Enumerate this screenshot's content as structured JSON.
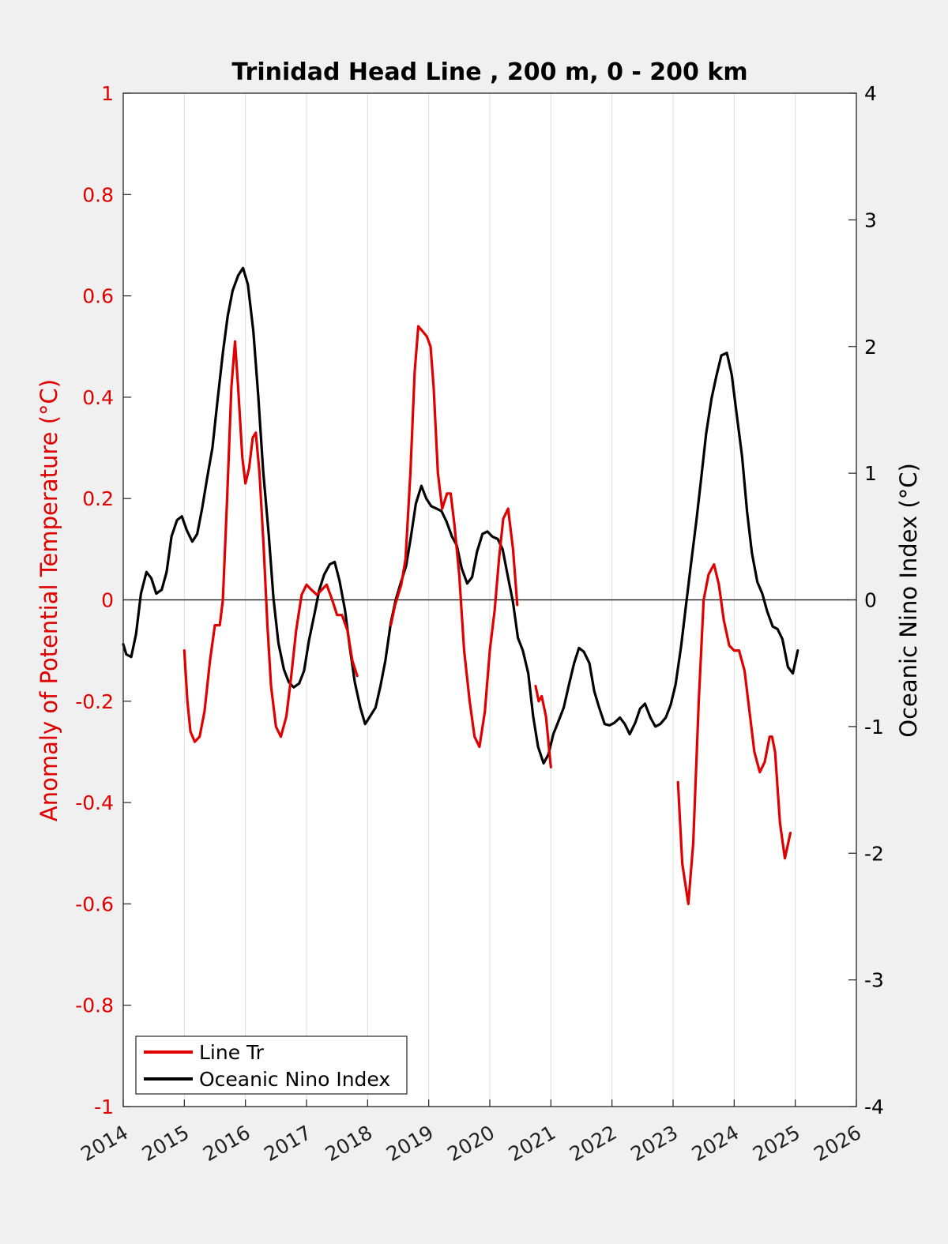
{
  "chart_data": {
    "type": "line",
    "title": "Trinidad Head Line , 200 m, 0 - 200 km",
    "ylabel_left": "Anomaly of Potential Temperature (°C)",
    "ylabel_right": "Oceanic Nino Index (°C)",
    "xlim": [
      2014,
      2026
    ],
    "ylim_left": [
      -1,
      1
    ],
    "ylim_right": [
      -4,
      4
    ],
    "x_ticks": [
      "2014",
      "2015",
      "2016",
      "2017",
      "2018",
      "2019",
      "2020",
      "2021",
      "2022",
      "2023",
      "2024",
      "2025",
      "2026"
    ],
    "y_ticks_left": [
      "1",
      "0.8",
      "0.6",
      "0.4",
      "0.2",
      "0",
      "-0.2",
      "-0.4",
      "-0.6",
      "-0.8",
      "-1"
    ],
    "y_ticks_right": [
      "4",
      "3",
      "2",
      "1",
      "0",
      "-1",
      "-2",
      "-3",
      "-4"
    ],
    "grid": "vertical",
    "zero_line": true,
    "legend_placement": "bottom-left",
    "colors": {
      "line_tr": "#e00000",
      "oni": "#000000",
      "axis_left": "#e00000",
      "background": "#f0f0f0"
    },
    "series": [
      {
        "name": "Line Tr",
        "axis": "left",
        "segments": [
          [
            [
              2015.0,
              -0.1
            ],
            [
              2015.05,
              -0.2
            ],
            [
              2015.1,
              -0.26
            ],
            [
              2015.17,
              -0.28
            ],
            [
              2015.25,
              -0.27
            ],
            [
              2015.33,
              -0.22
            ],
            [
              2015.42,
              -0.12
            ],
            [
              2015.5,
              -0.05
            ],
            [
              2015.58,
              -0.05
            ],
            [
              2015.63,
              0.0
            ],
            [
              2015.7,
              0.2
            ],
            [
              2015.77,
              0.42
            ],
            [
              2015.83,
              0.51
            ],
            [
              2015.88,
              0.42
            ],
            [
              2015.95,
              0.28
            ],
            [
              2016.0,
              0.23
            ],
            [
              2016.06,
              0.26
            ],
            [
              2016.12,
              0.32
            ],
            [
              2016.17,
              0.33
            ],
            [
              2016.23,
              0.25
            ],
            [
              2016.3,
              0.1
            ],
            [
              2016.36,
              -0.05
            ],
            [
              2016.42,
              -0.17
            ],
            [
              2016.5,
              -0.25
            ],
            [
              2016.58,
              -0.27
            ],
            [
              2016.67,
              -0.23
            ],
            [
              2016.75,
              -0.15
            ],
            [
              2016.83,
              -0.06
            ],
            [
              2016.92,
              0.01
            ],
            [
              2017.0,
              0.03
            ],
            [
              2017.08,
              0.02
            ],
            [
              2017.17,
              0.01
            ],
            [
              2017.25,
              0.02
            ],
            [
              2017.33,
              0.03
            ],
            [
              2017.42,
              0.0
            ],
            [
              2017.5,
              -0.03
            ],
            [
              2017.58,
              -0.03
            ],
            [
              2017.67,
              -0.06
            ],
            [
              2017.75,
              -0.12
            ],
            [
              2017.83,
              -0.15
            ]
          ],
          [
            [
              2018.38,
              -0.05
            ],
            [
              2018.45,
              -0.01
            ],
            [
              2018.55,
              0.03
            ],
            [
              2018.62,
              0.08
            ],
            [
              2018.7,
              0.25
            ],
            [
              2018.77,
              0.45
            ],
            [
              2018.83,
              0.54
            ],
            [
              2018.9,
              0.53
            ],
            [
              2018.97,
              0.52
            ],
            [
              2019.03,
              0.5
            ],
            [
              2019.08,
              0.42
            ],
            [
              2019.15,
              0.25
            ],
            [
              2019.22,
              0.18
            ],
            [
              2019.3,
              0.21
            ],
            [
              2019.36,
              0.21
            ],
            [
              2019.42,
              0.15
            ],
            [
              2019.5,
              0.05
            ],
            [
              2019.58,
              -0.1
            ],
            [
              2019.67,
              -0.2
            ],
            [
              2019.75,
              -0.27
            ],
            [
              2019.83,
              -0.29
            ],
            [
              2019.92,
              -0.22
            ],
            [
              2020.0,
              -0.1
            ],
            [
              2020.08,
              -0.02
            ],
            [
              2020.15,
              0.08
            ],
            [
              2020.22,
              0.16
            ],
            [
              2020.3,
              0.18
            ],
            [
              2020.38,
              0.1
            ],
            [
              2020.45,
              -0.01
            ]
          ]
        ],
        "segments_b": [
          [
            [
              2020.75,
              -0.17
            ],
            [
              2020.8,
              -0.2
            ],
            [
              2020.85,
              -0.19
            ],
            [
              2020.92,
              -0.23
            ],
            [
              2021.0,
              -0.33
            ]
          ],
          [
            [
              2023.08,
              -0.36
            ],
            [
              2023.15,
              -0.52
            ],
            [
              2023.25,
              -0.6
            ],
            [
              2023.33,
              -0.48
            ],
            [
              2023.42,
              -0.2
            ],
            [
              2023.5,
              0.0
            ],
            [
              2023.58,
              0.05
            ],
            [
              2023.67,
              0.07
            ],
            [
              2023.75,
              0.03
            ],
            [
              2023.83,
              -0.04
            ],
            [
              2023.92,
              -0.09
            ],
            [
              2024.0,
              -0.1
            ],
            [
              2024.08,
              -0.1
            ],
            [
              2024.17,
              -0.14
            ],
            [
              2024.25,
              -0.22
            ],
            [
              2024.33,
              -0.3
            ],
            [
              2024.42,
              -0.34
            ],
            [
              2024.5,
              -0.32
            ],
            [
              2024.58,
              -0.27
            ],
            [
              2024.62,
              -0.27
            ],
            [
              2024.67,
              -0.3
            ],
            [
              2024.75,
              -0.44
            ],
            [
              2024.83,
              -0.51
            ],
            [
              2024.92,
              -0.46
            ]
          ]
        ]
      },
      {
        "name": "Oceanic Nino Index",
        "axis": "right",
        "points": [
          [
            2014.0,
            -0.35
          ],
          [
            2014.05,
            -0.43
          ],
          [
            2014.13,
            -0.45
          ],
          [
            2014.21,
            -0.27
          ],
          [
            2014.29,
            0.05
          ],
          [
            2014.38,
            0.22
          ],
          [
            2014.46,
            0.17
          ],
          [
            2014.54,
            0.05
          ],
          [
            2014.63,
            0.08
          ],
          [
            2014.71,
            0.22
          ],
          [
            2014.79,
            0.5
          ],
          [
            2014.88,
            0.63
          ],
          [
            2014.96,
            0.66
          ],
          [
            2015.04,
            0.55
          ],
          [
            2015.13,
            0.46
          ],
          [
            2015.21,
            0.52
          ],
          [
            2015.29,
            0.72
          ],
          [
            2015.38,
            0.98
          ],
          [
            2015.46,
            1.2
          ],
          [
            2015.54,
            1.56
          ],
          [
            2015.63,
            1.95
          ],
          [
            2015.71,
            2.24
          ],
          [
            2015.79,
            2.44
          ],
          [
            2015.88,
            2.56
          ],
          [
            2015.96,
            2.62
          ],
          [
            2016.04,
            2.49
          ],
          [
            2016.13,
            2.12
          ],
          [
            2016.21,
            1.61
          ],
          [
            2016.29,
            1.02
          ],
          [
            2016.38,
            0.52
          ],
          [
            2016.46,
            0.01
          ],
          [
            2016.54,
            -0.34
          ],
          [
            2016.63,
            -0.55
          ],
          [
            2016.71,
            -0.65
          ],
          [
            2016.79,
            -0.69
          ],
          [
            2016.88,
            -0.66
          ],
          [
            2016.96,
            -0.56
          ],
          [
            2017.04,
            -0.32
          ],
          [
            2017.13,
            -0.11
          ],
          [
            2017.21,
            0.08
          ],
          [
            2017.29,
            0.2
          ],
          [
            2017.38,
            0.28
          ],
          [
            2017.46,
            0.3
          ],
          [
            2017.54,
            0.15
          ],
          [
            2017.63,
            -0.08
          ],
          [
            2017.71,
            -0.38
          ],
          [
            2017.79,
            -0.65
          ],
          [
            2017.88,
            -0.85
          ],
          [
            2017.96,
            -0.98
          ],
          [
            2018.04,
            -0.92
          ],
          [
            2018.13,
            -0.85
          ],
          [
            2018.21,
            -0.68
          ],
          [
            2018.29,
            -0.48
          ],
          [
            2018.38,
            -0.18
          ],
          [
            2018.46,
            0.0
          ],
          [
            2018.54,
            0.13
          ],
          [
            2018.63,
            0.27
          ],
          [
            2018.71,
            0.5
          ],
          [
            2018.79,
            0.76
          ],
          [
            2018.88,
            0.9
          ],
          [
            2018.96,
            0.8
          ],
          [
            2019.04,
            0.74
          ],
          [
            2019.13,
            0.72
          ],
          [
            2019.21,
            0.7
          ],
          [
            2019.29,
            0.62
          ],
          [
            2019.38,
            0.5
          ],
          [
            2019.46,
            0.43
          ],
          [
            2019.54,
            0.25
          ],
          [
            2019.63,
            0.13
          ],
          [
            2019.71,
            0.18
          ],
          [
            2019.79,
            0.38
          ],
          [
            2019.88,
            0.52
          ],
          [
            2019.96,
            0.54
          ],
          [
            2020.04,
            0.5
          ],
          [
            2020.13,
            0.48
          ],
          [
            2020.21,
            0.4
          ],
          [
            2020.29,
            0.2
          ],
          [
            2020.38,
            -0.02
          ],
          [
            2020.46,
            -0.3
          ],
          [
            2020.54,
            -0.4
          ],
          [
            2020.63,
            -0.58
          ],
          [
            2020.71,
            -0.92
          ],
          [
            2020.79,
            -1.16
          ],
          [
            2020.88,
            -1.29
          ],
          [
            2020.96,
            -1.22
          ],
          [
            2021.04,
            -1.06
          ],
          [
            2021.13,
            -0.95
          ],
          [
            2021.21,
            -0.85
          ],
          [
            2021.29,
            -0.68
          ],
          [
            2021.38,
            -0.5
          ],
          [
            2021.46,
            -0.38
          ],
          [
            2021.54,
            -0.41
          ],
          [
            2021.63,
            -0.5
          ],
          [
            2021.71,
            -0.72
          ],
          [
            2021.79,
            -0.85
          ],
          [
            2021.88,
            -0.98
          ],
          [
            2021.96,
            -0.99
          ],
          [
            2022.04,
            -0.97
          ],
          [
            2022.13,
            -0.93
          ],
          [
            2022.21,
            -0.98
          ],
          [
            2022.29,
            -1.06
          ],
          [
            2022.38,
            -0.97
          ],
          [
            2022.46,
            -0.86
          ],
          [
            2022.54,
            -0.82
          ],
          [
            2022.63,
            -0.93
          ],
          [
            2022.71,
            -1.0
          ],
          [
            2022.79,
            -0.98
          ],
          [
            2022.88,
            -0.93
          ],
          [
            2022.96,
            -0.83
          ],
          [
            2023.04,
            -0.67
          ],
          [
            2023.13,
            -0.37
          ],
          [
            2023.21,
            -0.05
          ],
          [
            2023.29,
            0.27
          ],
          [
            2023.38,
            0.62
          ],
          [
            2023.46,
            0.96
          ],
          [
            2023.54,
            1.31
          ],
          [
            2023.63,
            1.59
          ],
          [
            2023.71,
            1.77
          ],
          [
            2023.79,
            1.93
          ],
          [
            2023.88,
            1.95
          ],
          [
            2023.96,
            1.78
          ],
          [
            2024.04,
            1.47
          ],
          [
            2024.13,
            1.13
          ],
          [
            2024.21,
            0.7
          ],
          [
            2024.29,
            0.37
          ],
          [
            2024.38,
            0.14
          ],
          [
            2024.46,
            0.05
          ],
          [
            2024.54,
            -0.09
          ],
          [
            2024.63,
            -0.21
          ],
          [
            2024.71,
            -0.23
          ],
          [
            2024.79,
            -0.31
          ],
          [
            2024.88,
            -0.53
          ],
          [
            2024.96,
            -0.58
          ],
          [
            2025.04,
            -0.4
          ]
        ]
      }
    ],
    "legend": [
      "Line Tr",
      "Oceanic Nino Index"
    ]
  }
}
